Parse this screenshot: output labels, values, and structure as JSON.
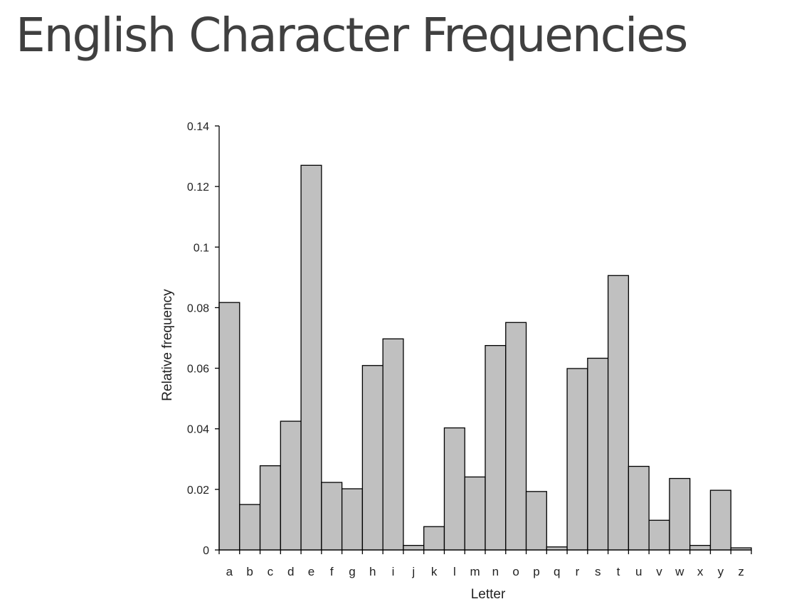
{
  "title": "English Character Frequencies",
  "chart_data": {
    "type": "bar",
    "title": "",
    "xlabel": "Letter",
    "ylabel": "Relative frequency",
    "categories": [
      "a",
      "b",
      "c",
      "d",
      "e",
      "f",
      "g",
      "h",
      "i",
      "j",
      "k",
      "l",
      "m",
      "n",
      "o",
      "p",
      "q",
      "r",
      "s",
      "t",
      "u",
      "v",
      "w",
      "x",
      "y",
      "z"
    ],
    "values": [
      0.0817,
      0.015,
      0.0278,
      0.0425,
      0.127,
      0.0223,
      0.0202,
      0.0609,
      0.0697,
      0.0015,
      0.0077,
      0.0403,
      0.0241,
      0.0675,
      0.0751,
      0.0193,
      0.001,
      0.0599,
      0.0633,
      0.0906,
      0.0276,
      0.0098,
      0.0236,
      0.0015,
      0.0197,
      0.0007
    ],
    "ylim": [
      0,
      0.14
    ],
    "yticks": [
      0,
      0.02,
      0.04,
      0.06,
      0.08,
      0.1,
      0.12,
      0.14
    ],
    "ytick_labels": [
      "0",
      "0.02",
      "0.04",
      "0.06",
      "0.08",
      "0.1",
      "0.12",
      "0.14"
    ],
    "grid": false,
    "legend": "none",
    "bar_color": "#c0c0c0",
    "bar_edge_color": "#000000"
  }
}
